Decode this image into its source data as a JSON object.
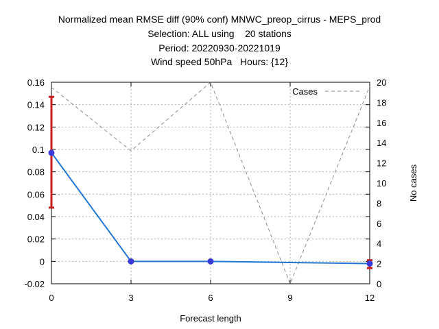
{
  "title_lines": [
    "Normalized mean RMSE diff (90% conf) MNWC_preop_cirrus - MEPS_prod",
    "Selection: ALL using    20 stations",
    "Period: 20220930-20221019",
    "Wind speed 50hPa   Hours: {12}"
  ],
  "chart_data": {
    "type": "line",
    "title": "Normalized mean RMSE diff (90% conf) MNWC_preop_cirrus - MEPS_prod",
    "xlabel": "Forecast length",
    "ylabel": "",
    "y2label": "No cases",
    "xlim": [
      0,
      12
    ],
    "ylim": [
      -0.02,
      0.16
    ],
    "y2lim": [
      0,
      20
    ],
    "x_ticks": [
      "0",
      "3",
      "6",
      "9",
      "12"
    ],
    "y_ticks": [
      "-0.02",
      "0",
      "0.02",
      "0.04",
      "0.06",
      "0.08",
      "0.1",
      "0.12",
      "0.14",
      "0.16"
    ],
    "y2_ticks": [
      "0",
      "2",
      "4",
      "6",
      "8",
      "10",
      "12",
      "14",
      "16",
      "18",
      "20"
    ],
    "grid": true,
    "legend_position": "top-right",
    "series": [
      {
        "color": "#1f77d4",
        "axis": "left",
        "x": [
          0,
          3,
          6,
          9,
          12
        ],
        "values": [
          0.097,
          0.0,
          0.0,
          -0.001,
          -0.002
        ],
        "markers_at": [
          0,
          3,
          6,
          12
        ],
        "marker_color": "#3a3ad8",
        "error_bars": [
          {
            "x": 0,
            "low": 0.048,
            "high": 0.147
          },
          {
            "x": 12,
            "low": -0.006,
            "high": 0.001
          }
        ],
        "error_color": "#c81e1e"
      },
      {
        "name": "Cases",
        "color": "#8a8a8a",
        "style": "dashed",
        "axis": "right",
        "x": [
          0,
          3,
          6,
          9,
          12
        ],
        "values": [
          19.5,
          13.2,
          20.0,
          0.0,
          19.6
        ]
      }
    ]
  }
}
